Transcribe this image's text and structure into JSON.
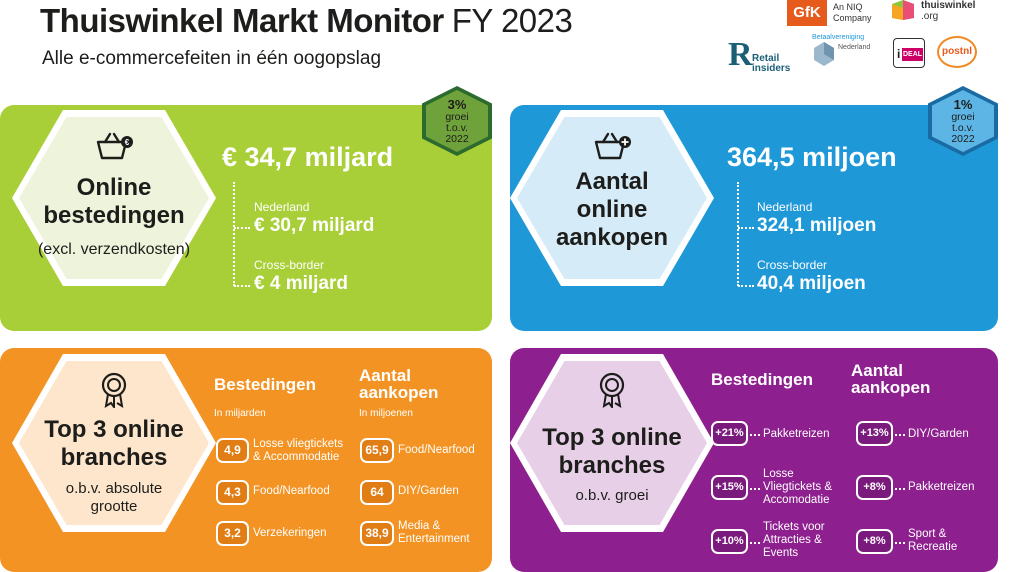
{
  "header": {
    "title": "Thuiswinkel Markt Monitor",
    "period": "FY 2023",
    "subtitle": "Alle e-commercefeiten in één oogopslag"
  },
  "logos": {
    "gfk": "GfK",
    "gfk_sub": [
      "An NIQ",
      "Company"
    ],
    "thuiswinkel": [
      "thuiswinkel",
      ".org"
    ],
    "retail_insiders": [
      "Retail",
      "insiders"
    ],
    "betaalvereniging": [
      "Betaalvereniging",
      "Nederland"
    ],
    "ideal": [
      "i",
      "DEAL"
    ],
    "postnl": "postnl"
  },
  "spending": {
    "title_lines": [
      "Online",
      "bestedingen"
    ],
    "subtitle": "(excl. verzendkosten)",
    "total": "€ 34,7 miljard",
    "nl_label": "Nederland",
    "nl_value": "€ 30,7 miljard",
    "cb_label": "Cross-border",
    "cb_value": "€ 4 miljard",
    "growth": {
      "pct": "3%",
      "lines": [
        "groei",
        "t.o.v.",
        "2022"
      ]
    }
  },
  "purchases": {
    "title_lines": [
      "Aantal",
      "online",
      "aankopen"
    ],
    "total": "364,5 miljoen",
    "nl_label": "Nederland",
    "nl_value": "324,1 miljoen",
    "cb_label": "Cross-border",
    "cb_value": "40,4 miljoen",
    "growth": {
      "pct": "1%",
      "lines": [
        "groei",
        "t.o.v.",
        "2022"
      ]
    }
  },
  "top_absolute": {
    "title_lines": [
      "Top 3 online",
      "branches"
    ],
    "subtitle_lines": [
      "o.b.v. absolute",
      "grootte"
    ],
    "col1": {
      "head": "Bestedingen",
      "sub": "In miljarden",
      "items": [
        {
          "value": "4,9",
          "lines": [
            "Losse vliegtickets",
            "& Accommodatie"
          ]
        },
        {
          "value": "4,3",
          "lines": [
            "Food/Nearfood"
          ]
        },
        {
          "value": "3,2",
          "lines": [
            "Verzekeringen"
          ]
        }
      ]
    },
    "col2": {
      "head_lines": [
        "Aantal",
        "aankopen"
      ],
      "sub": "In miljoenen",
      "items": [
        {
          "value": "65,9",
          "lines": [
            "Food/Nearfood"
          ]
        },
        {
          "value": "64",
          "lines": [
            "DIY/Garden"
          ]
        },
        {
          "value": "38,9",
          "lines": [
            "Media &",
            "Entertainment"
          ]
        }
      ]
    }
  },
  "top_growth": {
    "title_lines": [
      "Top 3 online",
      "branches"
    ],
    "subtitle": "o.b.v. groei",
    "col1": {
      "head": "Bestedingen",
      "items": [
        {
          "value": "+21%",
          "lines": [
            "Pakketreizen"
          ]
        },
        {
          "value": "+15%",
          "lines": [
            "Losse",
            "Vliegtickets &",
            "Accomodatie"
          ]
        },
        {
          "value": "+10%",
          "lines": [
            "Tickets voor",
            "Attracties &",
            "Events"
          ]
        }
      ]
    },
    "col2": {
      "head_lines": [
        "Aantal",
        "aankopen"
      ],
      "items": [
        {
          "value": "+13%",
          "lines": [
            "DIY/Garden"
          ]
        },
        {
          "value": "+8%",
          "lines": [
            "Pakketreizen"
          ]
        },
        {
          "value": "+8%",
          "lines": [
            "Sport &",
            "Recreatie"
          ]
        }
      ]
    }
  },
  "colors": {
    "green": "#a9cf38",
    "blue": "#1f98d8",
    "orange": "#f39323",
    "purple": "#8e1f8f"
  },
  "icons": {
    "spending": "basket-euro-icon",
    "purchases": "basket-plus-icon",
    "branches": "award-rosette-icon"
  }
}
